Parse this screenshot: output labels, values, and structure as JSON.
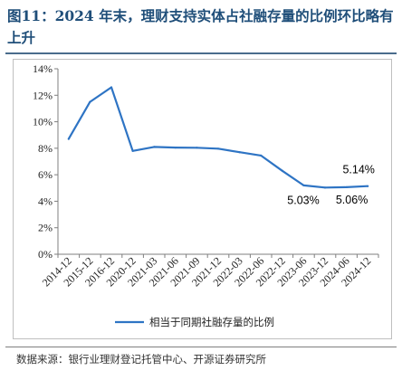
{
  "figure": {
    "title": "图11：2024 年末，理财支持实体占社融存量的比例环比略有上升",
    "source": "数据来源：银行业理财登记托管中心、开源证券研究所"
  },
  "chart_data": {
    "type": "line",
    "categories": [
      "2014-12",
      "2015-12",
      "2016-12",
      "2020-12",
      "2021-03",
      "2021-06",
      "2021-09",
      "2021-12",
      "2022-03",
      "2022-06",
      "2022-12",
      "2023-06",
      "2023-12",
      "2024-06",
      "2024-12"
    ],
    "series": [
      {
        "name": "相当于同期社融存量的比例",
        "color": "#2e74c4",
        "values": [
          8.7,
          11.5,
          12.6,
          7.8,
          8.1,
          8.05,
          8.04,
          7.97,
          7.7,
          7.45,
          6.3,
          5.2,
          5.03,
          5.06,
          5.14
        ]
      }
    ],
    "ylim": [
      0,
      14
    ],
    "yticks": [
      "0%",
      "2%",
      "4%",
      "6%",
      "8%",
      "10%",
      "12%",
      "14%"
    ],
    "grid": false,
    "legend": "bottom",
    "data_labels": [
      {
        "index": 12,
        "text": "5.03%"
      },
      {
        "index": 13,
        "text": "5.06%"
      },
      {
        "index": 14,
        "text": "5.14%"
      }
    ]
  }
}
